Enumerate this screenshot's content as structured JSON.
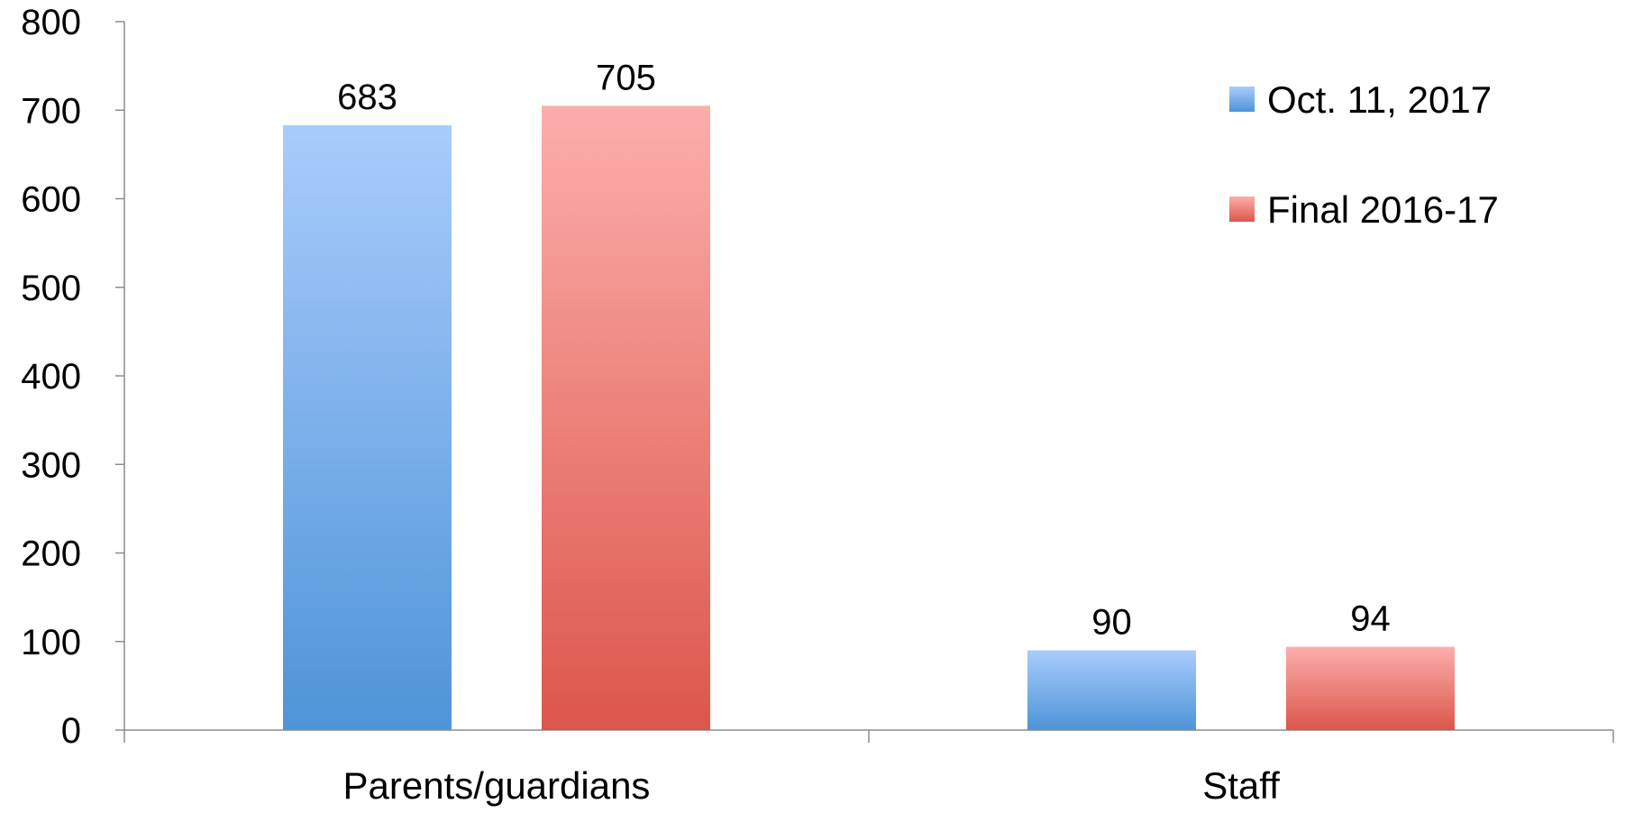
{
  "chart_data": {
    "type": "bar",
    "title": "",
    "xlabel": "",
    "ylabel": "",
    "categories": [
      "Parents/guardians",
      "Staff"
    ],
    "series": [
      {
        "name": "Oct. 11, 2017",
        "values": [
          683,
          90
        ],
        "color_top": "#a9ccfc",
        "color_bottom": "#4e94d8"
      },
      {
        "name": "Final 2016-17",
        "values": [
          705,
          94
        ],
        "color_top": "#fcaeac",
        "color_bottom": "#dc564a"
      }
    ],
    "ylim": [
      0,
      800
    ],
    "yticks": [
      0,
      100,
      200,
      300,
      400,
      500,
      600,
      700,
      800
    ],
    "grid": false,
    "legend_position": "top-right",
    "data_labels": true
  }
}
